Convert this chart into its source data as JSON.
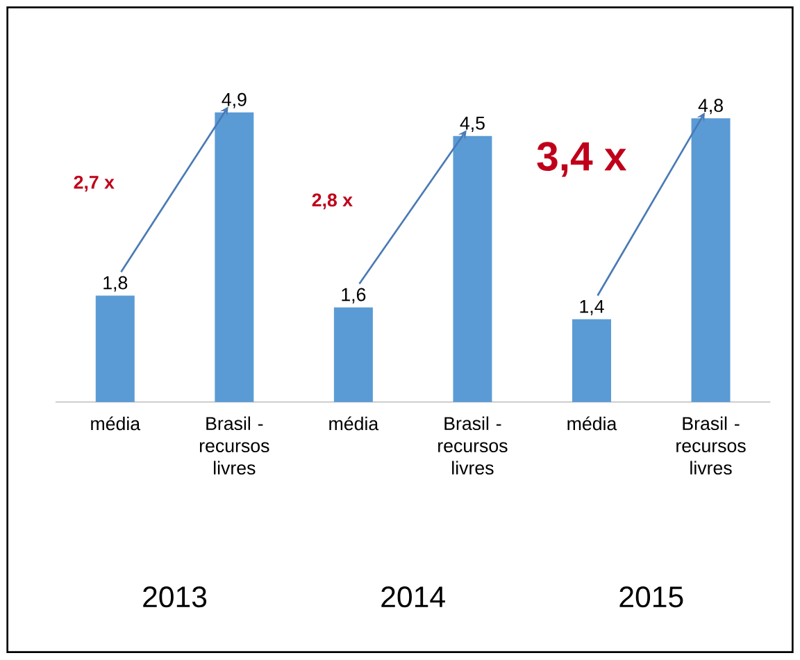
{
  "chart_data": {
    "type": "bar",
    "categories": [
      "média",
      "Brasil - recursos livres",
      "média",
      "Brasil - recursos livres",
      "média",
      "Brasil - recursos livres"
    ],
    "values": [
      1.8,
      4.9,
      1.6,
      4.5,
      1.4,
      4.8
    ],
    "value_labels": [
      "1,8",
      "4,9",
      "1,6",
      "4,5",
      "1,4",
      "4,8"
    ],
    "color": "#5b9bd5",
    "annotations": [
      "2,7 x",
      "2,8 x",
      "3,4 x",
      "2013",
      "2014",
      "2015"
    ]
  }
}
